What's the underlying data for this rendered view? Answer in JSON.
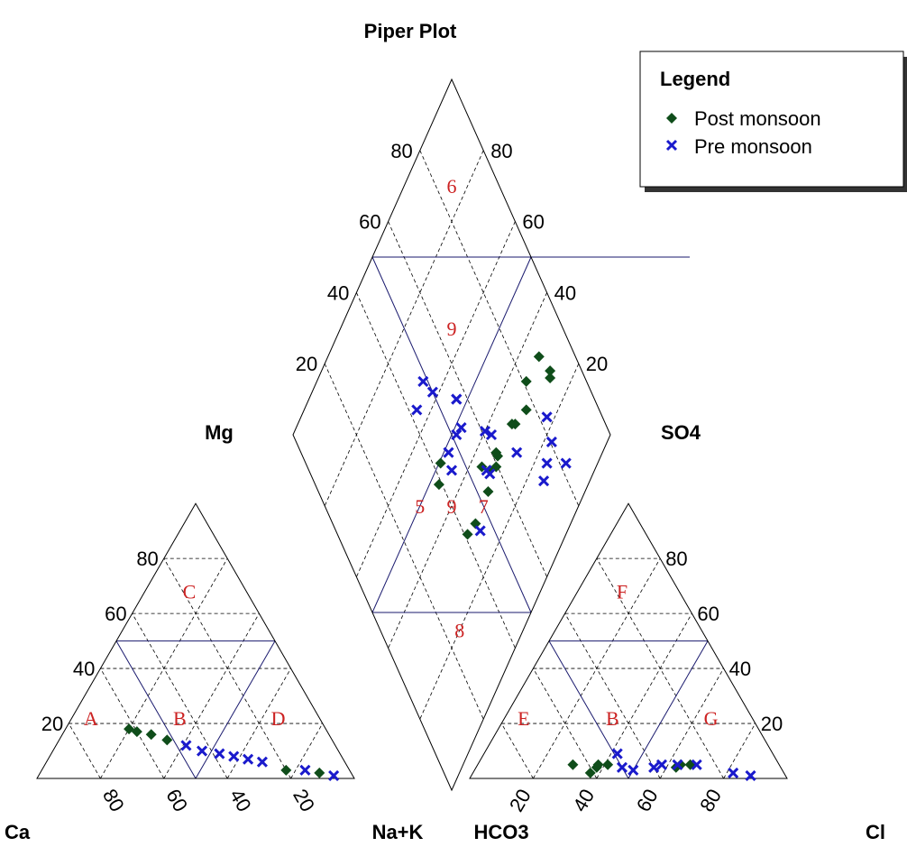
{
  "chart_data": {
    "type": "scatter",
    "title": "Piper Plot",
    "apex_labels": {
      "cation_left": "Ca",
      "cation_right": "Na+K",
      "cation_top": "Mg",
      "anion_left": "HCO3",
      "anion_right": "Cl",
      "anion_top": "SO4"
    },
    "tick_labels": [
      "20",
      "40",
      "60",
      "80"
    ],
    "zone_labels": {
      "cation": [
        "A",
        "B",
        "C",
        "D"
      ],
      "anion": [
        "E",
        "B",
        "F",
        "G"
      ],
      "diamond": [
        "5",
        "6",
        "7",
        "8",
        "9",
        "9"
      ]
    },
    "zone_color": "#cc2222",
    "legend": {
      "title": "Legend",
      "placement": "top-right",
      "entries": [
        "Post monsoon",
        "Pre monsoon"
      ]
    },
    "series": [
      {
        "name": "Post monsoon",
        "marker": "diamond",
        "color": "#0f4d1a",
        "cations": [
          {
            "ca": 62,
            "mg": 18,
            "nak": 20
          },
          {
            "ca": 60,
            "mg": 17,
            "nak": 23
          },
          {
            "ca": 56,
            "mg": 16,
            "nak": 28
          },
          {
            "ca": 52,
            "mg": 14,
            "nak": 34
          },
          {
            "ca": 20,
            "mg": 3,
            "nak": 77
          },
          {
            "ca": 10,
            "mg": 2,
            "nak": 88
          }
        ],
        "anions": [
          {
            "hco3": 65,
            "so4": 5,
            "cl": 30
          },
          {
            "hco3": 61,
            "so4": 2,
            "cl": 37
          },
          {
            "hco3": 58,
            "so4": 4,
            "cl": 38
          },
          {
            "hco3": 57,
            "so4": 5,
            "cl": 38
          },
          {
            "hco3": 54,
            "so4": 5,
            "cl": 41
          },
          {
            "hco3": 33,
            "so4": 4,
            "cl": 63
          },
          {
            "hco3": 31,
            "so4": 5,
            "cl": 64
          },
          {
            "hco3": 28,
            "so4": 5,
            "cl": 67
          }
        ],
        "diamond": [
          {
            "a": 0.55,
            "c": 0.28
          },
          {
            "a": 0.62,
            "c": 0.34
          },
          {
            "a": 0.62,
            "c": 0.32
          },
          {
            "a": 0.47,
            "c": 0.35
          },
          {
            "a": 0.47,
            "c": 0.43
          },
          {
            "a": 0.4,
            "c": 0.47
          },
          {
            "a": 0.38,
            "c": 0.47
          },
          {
            "a": 0.28,
            "c": 0.55
          },
          {
            "a": 0.29,
            "c": 0.56
          },
          {
            "a": 0.28,
            "c": 0.59
          },
          {
            "a": 0.24,
            "c": 0.6
          },
          {
            "a": 0.24,
            "c": 0.6
          },
          {
            "a": 0.23,
            "c": 0.66
          },
          {
            "a": 0.19,
            "c": 0.59
          },
          {
            "a": 0.15,
            "c": 0.75
          },
          {
            "a": 0.1,
            "c": 0.78
          },
          {
            "a": -0.07,
            "c": 0.58
          },
          {
            "a": -0.08,
            "c": 0.64
          }
        ]
      },
      {
        "name": "Pre monsoon",
        "marker": "cross",
        "color": "#1a1acc",
        "cations": [
          {
            "ca": 47,
            "mg": 12,
            "nak": 41
          },
          {
            "ca": 43,
            "mg": 10,
            "nak": 47
          },
          {
            "ca": 38,
            "mg": 9,
            "nak": 53
          },
          {
            "ca": 34,
            "mg": 8,
            "nak": 58
          },
          {
            "ca": 30,
            "mg": 7,
            "nak": 63
          },
          {
            "ca": 26,
            "mg": 6,
            "nak": 68
          },
          {
            "ca": 14,
            "mg": 3,
            "nak": 83
          },
          {
            "ca": 6,
            "mg": 1,
            "nak": 93
          }
        ],
        "anions": [
          {
            "hco3": 50,
            "so4": 4,
            "cl": 46
          },
          {
            "hco3": 49,
            "so4": 9,
            "cl": 42
          },
          {
            "hco3": 47,
            "so4": 3,
            "cl": 50
          },
          {
            "hco3": 40,
            "so4": 4,
            "cl": 56
          },
          {
            "hco3": 37,
            "so4": 5,
            "cl": 58
          },
          {
            "hco3": 32,
            "so4": 5,
            "cl": 63
          },
          {
            "hco3": 26,
            "so4": 5,
            "cl": 69
          },
          {
            "hco3": 16,
            "so4": 2,
            "cl": 82
          },
          {
            "hco3": 11,
            "so4": 1,
            "cl": 88
          }
        ],
        "diamond": [
          {
            "a": 0.63,
            "c": 0.52
          },
          {
            "a": 0.72,
            "c": 0.58
          },
          {
            "a": 0.6,
            "c": 0.58
          },
          {
            "a": 0.58,
            "c": 0.63
          },
          {
            "a": 0.6,
            "c": 0.45
          },
          {
            "a": 0.41,
            "c": 0.55
          },
          {
            "a": 0.24,
            "c": 0.61
          },
          {
            "a": 0.18,
            "c": 0.77
          },
          {
            "a": 0.22,
            "c": 0.6
          },
          {
            "a": 0.25,
            "c": 0.5
          },
          {
            "a": 0.21,
            "c": 0.49
          },
          {
            "a": 0.06,
            "c": 0.48
          },
          {
            "a": 0.03,
            "c": 0.5
          },
          {
            "a": 0.0,
            "c": 0.6
          },
          {
            "a": -0.02,
            "c": 0.55
          },
          {
            "a": 0.03,
            "c": 0.4
          },
          {
            "a": 0.03,
            "c": 0.4
          },
          {
            "a": -0.12,
            "c": 0.38
          },
          {
            "a": -0.18,
            "c": 0.35
          },
          {
            "a": -0.22,
            "c": 0.43
          }
        ]
      }
    ]
  }
}
